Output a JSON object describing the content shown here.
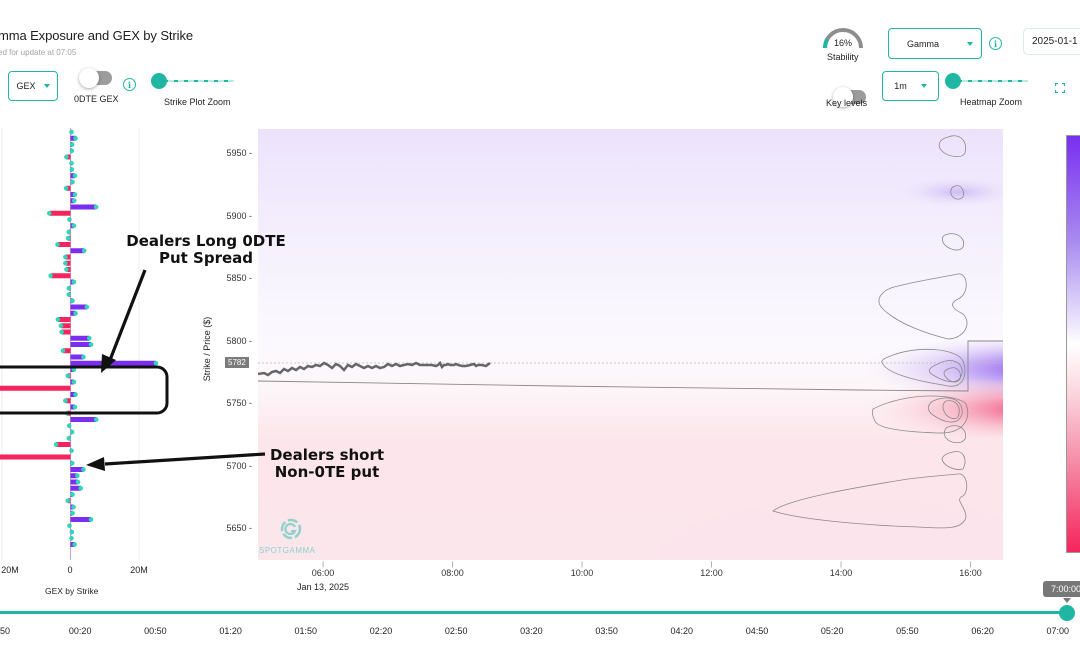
{
  "header": {
    "title": "mma Exposure and GEX by Strike",
    "subtitle": "ed for update at 07:05"
  },
  "left_controls": {
    "gex_select": {
      "value": "GEX"
    },
    "odte_toggle": {
      "label": "0DTE GEX",
      "on": false
    },
    "info_icon": "i",
    "strike_zoom_label": "Strike Plot Zoom"
  },
  "right_controls": {
    "stability": {
      "value": "16%",
      "label": "Stability",
      "percent": 16
    },
    "gamma_select": {
      "value": "Gamma"
    },
    "info_icon": "i",
    "date_input": {
      "value": "2025-01-1"
    },
    "key_levels_toggle": {
      "label": "Key levels",
      "on": false
    },
    "interval_select": {
      "value": "1m"
    },
    "heatmap_zoom_label": "Heatmap Zoom",
    "fullscreen_icon": "fullscreen-icon"
  },
  "gex_chart": {
    "xlabel": "GEX by Strike",
    "xticks": [
      "20M",
      "0",
      "20M"
    ]
  },
  "heatmap": {
    "ylabel": "Strike / Price ($)",
    "yticks": [
      "5950",
      "5900",
      "5850",
      "5800",
      "5750",
      "5700",
      "5650"
    ],
    "xticks": [
      "06:00",
      "08:00",
      "10:00",
      "12:00",
      "14:00",
      "16:00"
    ],
    "date_label": "Jan 13, 2025",
    "price_tag": "5782",
    "watermark": "SPOTGAMMA"
  },
  "annotations": {
    "long_spread": "Dealers Long 0DTE\nPut Spread",
    "long_spread_l1": "Dealers Long 0DTE",
    "long_spread_l2": "Put Spread",
    "short_put_l1": "Dealers short",
    "short_put_l2": "Non-0TE put"
  },
  "timeline": {
    "labels": [
      "50",
      "00:20",
      "00:50",
      "01:20",
      "01:50",
      "02:20",
      "02:50",
      "03:20",
      "03:50",
      "04:20",
      "04:50",
      "05:20",
      "05:50",
      "06:20",
      "07:00"
    ],
    "tooltip": "7:00:00"
  },
  "colors": {
    "accent": "#1fb7a3",
    "positive": "#7a2ff0",
    "negative": "#f5245c",
    "dot": "#2fd6b8"
  },
  "chart_data": {
    "type": "bar",
    "title": "GEX by Strike",
    "orientation": "horizontal",
    "xlabel": "GEX by Strike",
    "ylabel": "Strike",
    "xlim": [
      -25000000,
      30000000
    ],
    "note": "Values estimated from bar lengths (M); positive=purple, negative=red",
    "categories": [
      5965,
      5960,
      5955,
      5950,
      5945,
      5940,
      5935,
      5930,
      5925,
      5920,
      5915,
      5910,
      5905,
      5900,
      5895,
      5890,
      5885,
      5880,
      5875,
      5870,
      5865,
      5860,
      5855,
      5850,
      5845,
      5840,
      5835,
      5830,
      5825,
      5820,
      5815,
      5810,
      5805,
      5800,
      5795,
      5790,
      5785,
      5780,
      5775,
      5770,
      5765,
      5760,
      5755,
      5750,
      5745,
      5740,
      5735,
      5730,
      5725,
      5720,
      5715,
      5710,
      5705,
      5700,
      5695,
      5690,
      5685,
      5680,
      5675,
      5670,
      5665,
      5660,
      5655,
      5650,
      5645,
      5640,
      5635
    ],
    "values": [
      0.3,
      1.5,
      0.5,
      0.4,
      -1.2,
      0.3,
      0.4,
      1.3,
      0.6,
      -1.3,
      1.3,
      1.1,
      7.5,
      -6.2,
      -0.3,
      1.0,
      -0.5,
      -0.7,
      -3.8,
      4.0,
      -1.5,
      -1.5,
      -1.2,
      -5.8,
      1.0,
      -0.5,
      -0.5,
      0.6,
      4.8,
      1.5,
      -3.7,
      -2.8,
      -2.6,
      5.5,
      6.0,
      -2.2,
      3.8,
      25.0,
      1.0,
      -0.8,
      1.0,
      -25.0,
      1.5,
      -1.5,
      1.3,
      -1.0,
      7.5,
      -0.4,
      0.5,
      -0.5,
      -4.2,
      0.3,
      -25.0,
      0.5,
      3.8,
      2.0,
      2.2,
      3.0,
      0.6,
      -0.8,
      0.9,
      0.6,
      6.0,
      -0.3,
      0.4,
      0.3,
      1.2
    ]
  }
}
